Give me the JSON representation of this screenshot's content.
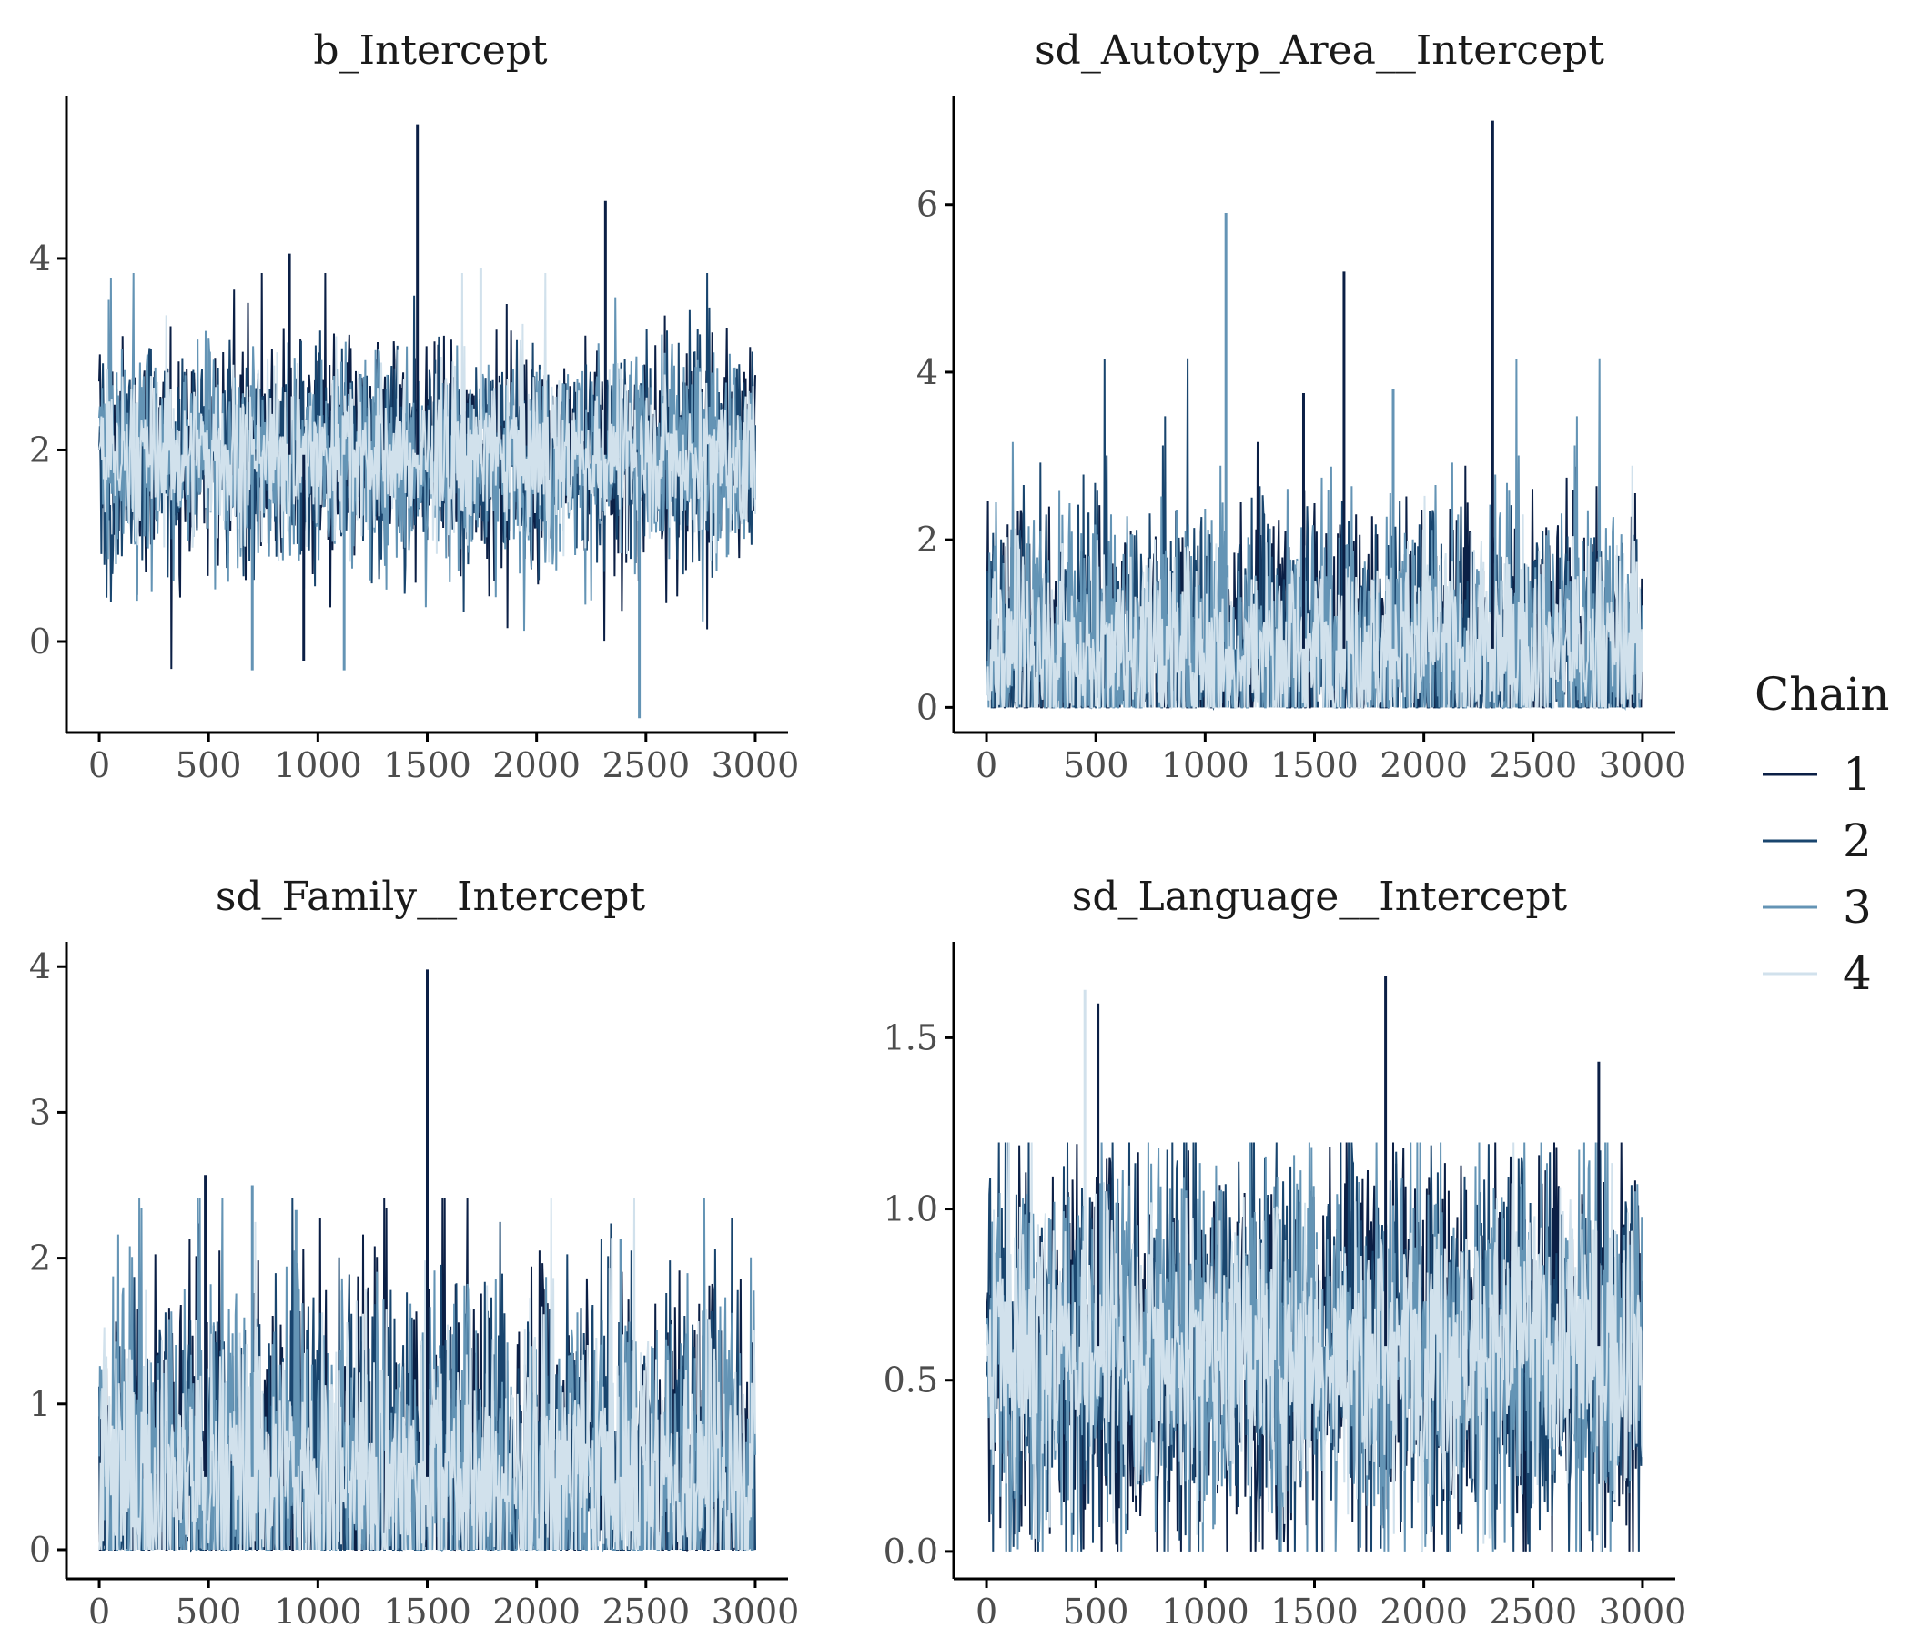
{
  "legend": {
    "title": "Chain",
    "entries": [
      {
        "label": "1",
        "color": "#0b1f45"
      },
      {
        "label": "2",
        "color": "#19456e"
      },
      {
        "label": "3",
        "color": "#6494b5"
      },
      {
        "label": "4",
        "color": "#d1e1ec"
      }
    ]
  },
  "chart_data": [
    {
      "type": "line",
      "title": "b_Intercept",
      "xlabel": "",
      "ylabel": "",
      "xlim": [
        -150,
        3150
      ],
      "ylim": [
        -0.95,
        5.7
      ],
      "x_ticks": [
        0,
        500,
        1000,
        1500,
        2000,
        2500,
        3000
      ],
      "y_ticks": [
        0,
        2,
        4
      ],
      "grid": false,
      "trace_summary": {
        "center": 1.95,
        "band_low": 1.45,
        "band_high": 2.45,
        "min": -0.8,
        "max": 5.4
      },
      "spikes": [
        {
          "x": 1455,
          "y": 5.4,
          "series": "1"
        },
        {
          "x": 2315,
          "y": 4.6,
          "series": "1"
        },
        {
          "x": 870,
          "y": 4.05,
          "series": "1"
        },
        {
          "x": 1745,
          "y": 3.9,
          "series": "4"
        },
        {
          "x": 2470,
          "y": -0.8,
          "series": "3"
        },
        {
          "x": 700,
          "y": -0.3,
          "series": "3"
        },
        {
          "x": 935,
          "y": -0.2,
          "series": "1"
        },
        {
          "x": 1120,
          "y": -0.3,
          "series": "3"
        }
      ]
    },
    {
      "type": "line",
      "title": "sd_Autotyp_Area__Intercept",
      "xlabel": "",
      "ylabel": "",
      "xlim": [
        -150,
        3150
      ],
      "ylim": [
        -0.3,
        7.3
      ],
      "x_ticks": [
        0,
        500,
        1000,
        1500,
        2000,
        2500,
        3000
      ],
      "y_ticks": [
        0,
        2,
        4,
        6
      ],
      "grid": false,
      "trace_summary": {
        "center": 0.7,
        "band_low": 0.0,
        "band_high": 1.5,
        "min": 0.0,
        "max": 7.0
      },
      "spikes": [
        {
          "x": 2315,
          "y": 7.0,
          "series": "1"
        },
        {
          "x": 1095,
          "y": 5.9,
          "series": "3"
        },
        {
          "x": 1635,
          "y": 5.2,
          "series": "1"
        },
        {
          "x": 1860,
          "y": 3.8,
          "series": "3"
        },
        {
          "x": 1450,
          "y": 3.75,
          "series": "1"
        }
      ]
    },
    {
      "type": "line",
      "title": "sd_Family__Intercept",
      "xlabel": "",
      "ylabel": "",
      "xlim": [
        -150,
        3150
      ],
      "ylim": [
        -0.2,
        4.17
      ],
      "x_ticks": [
        0,
        500,
        1000,
        1500,
        2000,
        2500,
        3000
      ],
      "y_ticks": [
        0,
        1,
        2,
        3,
        4
      ],
      "grid": false,
      "trace_summary": {
        "center": 0.5,
        "band_low": 0.0,
        "band_high": 1.2,
        "min": 0.0,
        "max": 3.98
      },
      "spikes": [
        {
          "x": 1500,
          "y": 3.98,
          "series": "1"
        },
        {
          "x": 485,
          "y": 2.57,
          "series": "1"
        },
        {
          "x": 700,
          "y": 2.5,
          "series": "3"
        },
        {
          "x": 900,
          "y": 2.33,
          "series": "3"
        },
        {
          "x": 2385,
          "y": 2.13,
          "series": "3"
        }
      ]
    },
    {
      "type": "line",
      "title": "sd_Language__Intercept",
      "xlabel": "",
      "ylabel": "",
      "xlim": [
        -150,
        3150
      ],
      "ylim": [
        -0.08,
        1.78
      ],
      "x_ticks": [
        0,
        500,
        1000,
        1500,
        2000,
        2500,
        3000
      ],
      "y_ticks": [
        0.0,
        0.5,
        1.0,
        1.5
      ],
      "y_tick_labels": [
        "0.0",
        "0.5",
        "1.0",
        "1.5"
      ],
      "grid": false,
      "trace_summary": {
        "center": 0.6,
        "band_low": 0.35,
        "band_high": 0.85,
        "min": 0.0,
        "max": 1.68
      },
      "spikes": [
        {
          "x": 1825,
          "y": 1.68,
          "series": "1"
        },
        {
          "x": 450,
          "y": 1.64,
          "series": "4"
        },
        {
          "x": 510,
          "y": 1.6,
          "series": "1"
        },
        {
          "x": 2800,
          "y": 1.43,
          "series": "1"
        }
      ]
    }
  ]
}
